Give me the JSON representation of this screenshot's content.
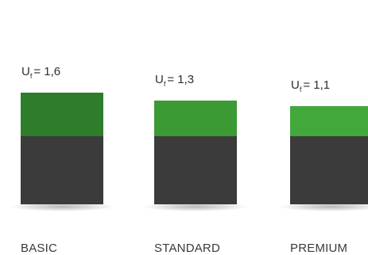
{
  "chart_data": {
    "type": "bar",
    "categories": [
      "BASIC",
      "STANDARD",
      "PREMIUM"
    ],
    "values": [
      1.6,
      1.3,
      1.1
    ],
    "value_label_prefix": "U",
    "value_label_subscript": "f",
    "value_labels": [
      "1,6",
      "1,3",
      "1,1"
    ],
    "colors": {
      "base": "#3b3b3b",
      "top": [
        "#2e7d2a",
        "#3c9a34",
        "#43a83b"
      ],
      "shadow": "#9a9a9a"
    }
  }
}
